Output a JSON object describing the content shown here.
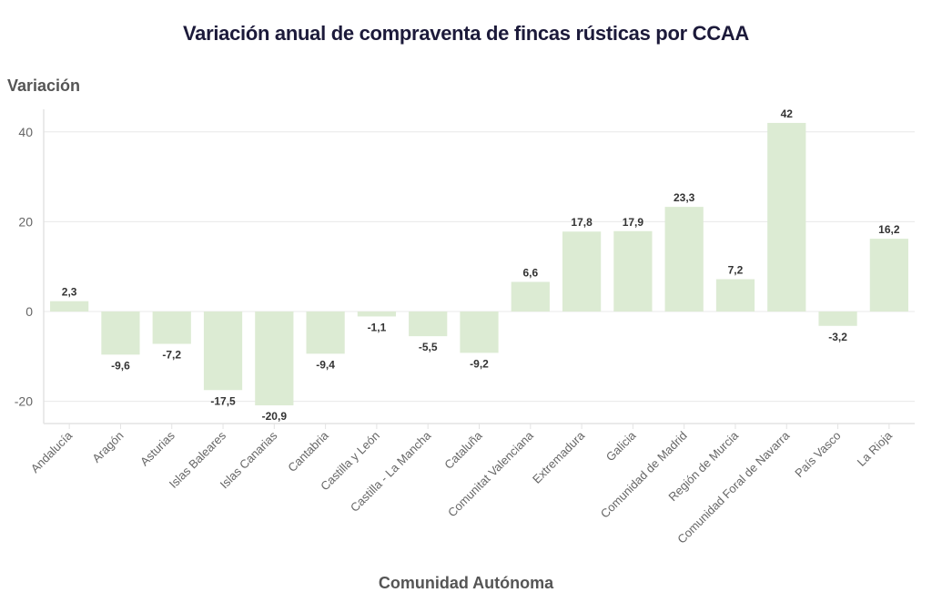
{
  "chart_data": {
    "type": "bar",
    "title": "Variación anual de compraventa de fincas rústicas por CCAA",
    "xlabel": "Comunidad Autónoma",
    "ylabel": "Variación",
    "ylim": [
      -25,
      45
    ],
    "yticks": [
      -20,
      0,
      20,
      40
    ],
    "grid": true,
    "legend": "none",
    "bar_color": "#dcebd3",
    "categories": [
      "Andalucía",
      "Aragón",
      "Asturias",
      "Islas Baleares",
      "Islas Canarias",
      "Cantabria",
      "Castilla y León",
      "Castilla - La Mancha",
      "Cataluña",
      "Comunitat Valenciana",
      "Extremadura",
      "Galicia",
      "Comunidad de Madrid",
      "Región de Murcia",
      "Comunidad Foral de Navarra",
      "País Vasco",
      "La Rioja"
    ],
    "values": [
      2.3,
      -9.6,
      -7.2,
      -17.5,
      -20.9,
      -9.4,
      -1.1,
      -5.5,
      -9.2,
      6.6,
      17.8,
      17.9,
      23.3,
      7.2,
      42,
      -3.2,
      16.2
    ],
    "data_labels": [
      "2,3",
      "-9,6",
      "-7,2",
      "-17,5",
      "-20,9",
      "-9,4",
      "-1,1",
      "-5,5",
      "-9,2",
      "6,6",
      "17,8",
      "17,9",
      "23,3",
      "7,2",
      "42",
      "-3,2",
      "16,2"
    ]
  }
}
